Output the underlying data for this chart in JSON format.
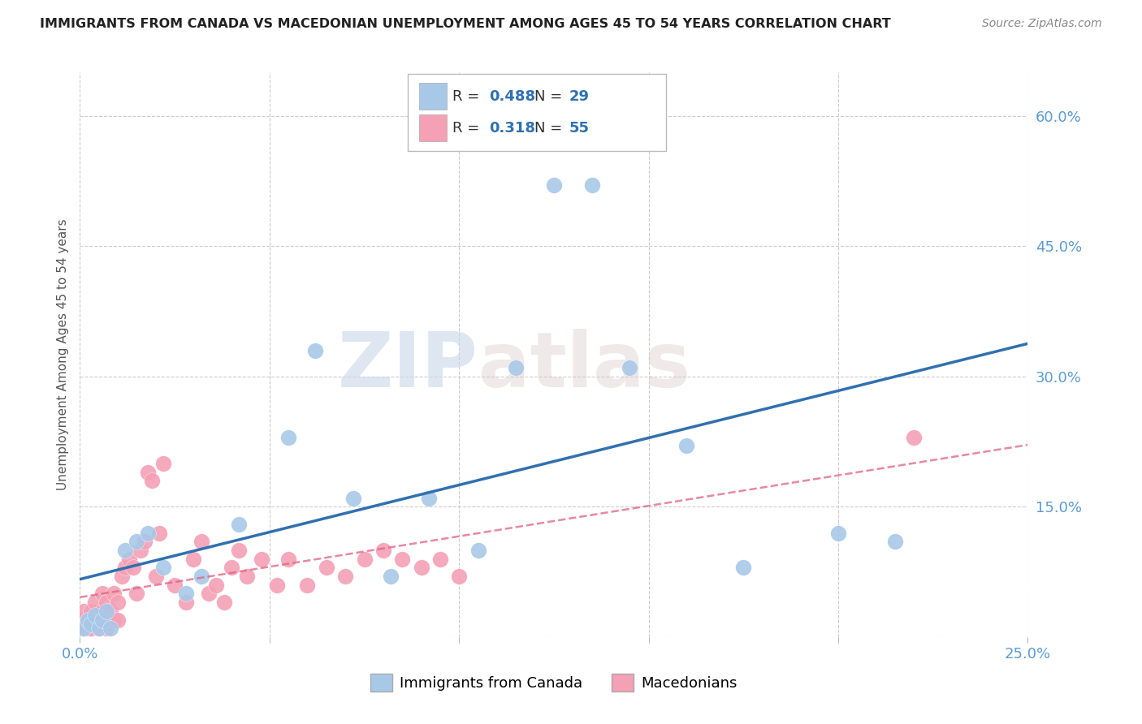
{
  "title": "IMMIGRANTS FROM CANADA VS MACEDONIAN UNEMPLOYMENT AMONG AGES 45 TO 54 YEARS CORRELATION CHART",
  "source": "Source: ZipAtlas.com",
  "ylabel": "Unemployment Among Ages 45 to 54 years",
  "xlim": [
    0.0,
    0.25
  ],
  "ylim": [
    0.0,
    0.65
  ],
  "R_blue": 0.488,
  "N_blue": 29,
  "R_pink": 0.318,
  "N_pink": 55,
  "blue_color": "#a8c8e8",
  "pink_color": "#f4a0b5",
  "blue_line_color": "#3070b0",
  "pink_line_color": "#e06080",
  "legend_label_blue": "Immigrants from Canada",
  "legend_label_pink": "Macedonians",
  "blue_x": [
    0.001,
    0.002,
    0.003,
    0.004,
    0.005,
    0.006,
    0.007,
    0.008,
    0.012,
    0.015,
    0.018,
    0.022,
    0.028,
    0.032,
    0.042,
    0.055,
    0.062,
    0.072,
    0.082,
    0.092,
    0.105,
    0.115,
    0.125,
    0.135,
    0.145,
    0.16,
    0.175,
    0.2,
    0.215
  ],
  "blue_y": [
    0.01,
    0.02,
    0.015,
    0.025,
    0.01,
    0.02,
    0.03,
    0.01,
    0.1,
    0.11,
    0.12,
    0.08,
    0.05,
    0.07,
    0.13,
    0.23,
    0.33,
    0.16,
    0.07,
    0.16,
    0.1,
    0.31,
    0.52,
    0.52,
    0.31,
    0.22,
    0.08,
    0.12,
    0.11
  ],
  "pink_x": [
    0.001,
    0.001,
    0.001,
    0.002,
    0.002,
    0.003,
    0.003,
    0.004,
    0.004,
    0.005,
    0.005,
    0.006,
    0.006,
    0.007,
    0.007,
    0.008,
    0.009,
    0.009,
    0.01,
    0.01,
    0.011,
    0.012,
    0.013,
    0.014,
    0.015,
    0.016,
    0.017,
    0.018,
    0.019,
    0.02,
    0.021,
    0.022,
    0.025,
    0.028,
    0.03,
    0.032,
    0.034,
    0.036,
    0.038,
    0.04,
    0.042,
    0.044,
    0.048,
    0.052,
    0.055,
    0.06,
    0.065,
    0.07,
    0.075,
    0.08,
    0.085,
    0.09,
    0.095,
    0.1,
    0.22
  ],
  "pink_y": [
    0.01,
    0.02,
    0.03,
    0.01,
    0.02,
    0.01,
    0.03,
    0.02,
    0.04,
    0.01,
    0.02,
    0.03,
    0.05,
    0.01,
    0.04,
    0.03,
    0.02,
    0.05,
    0.02,
    0.04,
    0.07,
    0.08,
    0.09,
    0.08,
    0.05,
    0.1,
    0.11,
    0.19,
    0.18,
    0.07,
    0.12,
    0.2,
    0.06,
    0.04,
    0.09,
    0.11,
    0.05,
    0.06,
    0.04,
    0.08,
    0.1,
    0.07,
    0.09,
    0.06,
    0.09,
    0.06,
    0.08,
    0.07,
    0.09,
    0.1,
    0.09,
    0.08,
    0.09,
    0.07,
    0.23
  ],
  "watermark_zip": "ZIP",
  "watermark_atlas": "atlas",
  "background_color": "#ffffff",
  "grid_color": "#cccccc"
}
